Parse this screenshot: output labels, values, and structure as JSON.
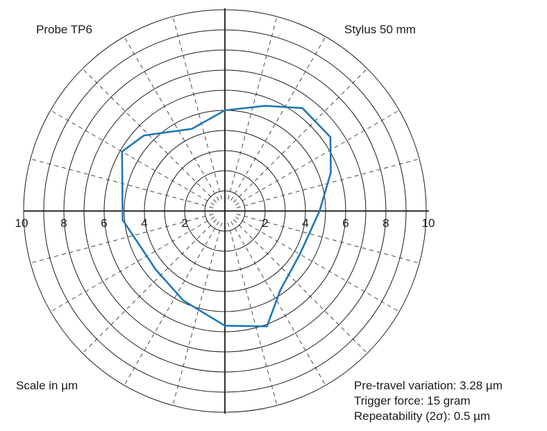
{
  "labels": {
    "probe": "Probe TP6",
    "stylus": "Stylus 50 mm",
    "scale": "Scale in µm",
    "specs": [
      "Pre-travel variation: 3.28 µm",
      "Trigger force: 15 gram",
      "Repeatability (2σ): 0.5 µm"
    ]
  },
  "chart_data": {
    "type": "polar",
    "radial_range": [
      0,
      10
    ],
    "ring_step": 1,
    "spoke_step_deg": 15,
    "radial_tick_labels": [
      "10",
      "8",
      "6",
      "4",
      "2",
      "2",
      "4",
      "6",
      "8",
      "10"
    ],
    "radial_tick_values": [
      -10,
      -8,
      -6,
      -4,
      -2,
      2,
      4,
      6,
      8,
      10
    ],
    "series_color": "#1f77b4",
    "series": [
      {
        "points": [
          {
            "angle": 90,
            "r": 5.0
          },
          {
            "angle": 69,
            "r": 5.6
          },
          {
            "angle": 53,
            "r": 6.4
          },
          {
            "angle": 35,
            "r": 6.4
          },
          {
            "angle": 20,
            "r": 5.6
          },
          {
            "angle": 0,
            "r": 4.7
          },
          {
            "angle": -30,
            "r": 4.3
          },
          {
            "angle": -55,
            "r": 4.8
          },
          {
            "angle": -70,
            "r": 6.1
          },
          {
            "angle": -90,
            "r": 5.7
          },
          {
            "angle": -115,
            "r": 4.9
          },
          {
            "angle": -140,
            "r": 4.5
          },
          {
            "angle": -175,
            "r": 5.1
          },
          {
            "angle": 150,
            "r": 5.9
          },
          {
            "angle": 137,
            "r": 5.5
          },
          {
            "angle": 112,
            "r": 4.4
          },
          {
            "angle": 90,
            "r": 5.0
          }
        ]
      }
    ]
  }
}
